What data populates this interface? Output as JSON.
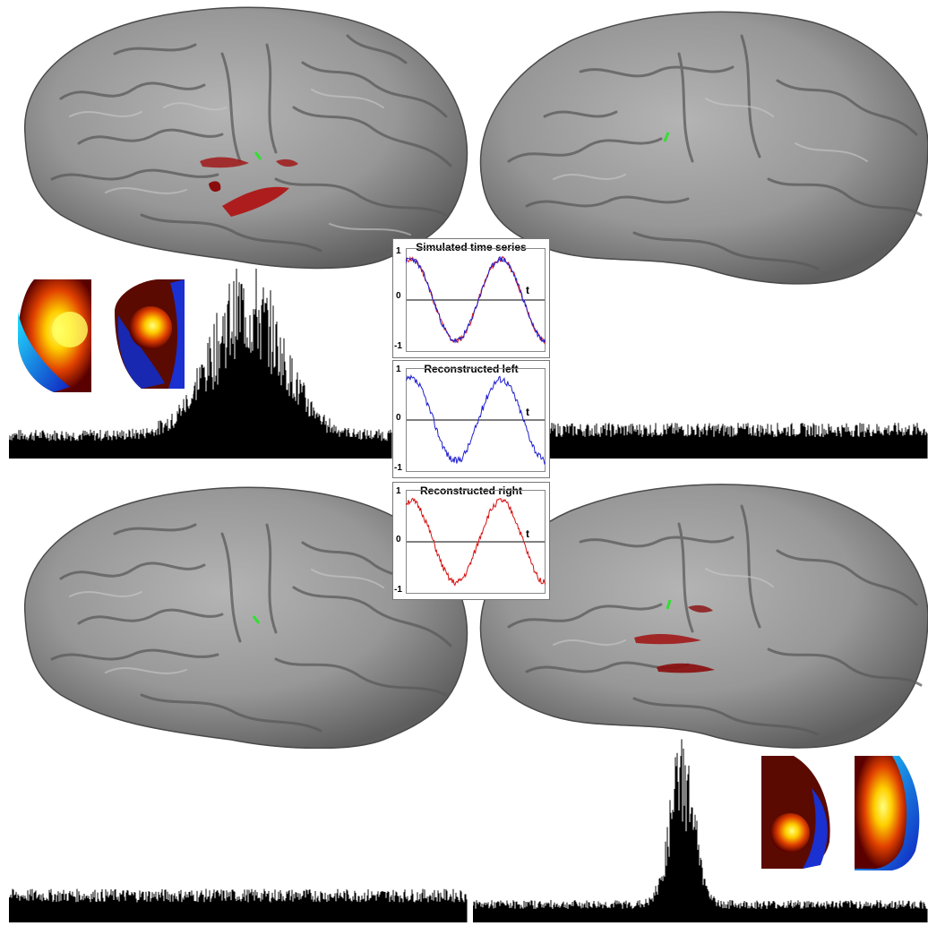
{
  "panels": [
    {
      "id": "simulated",
      "title": "Simulated time series",
      "y_max": "1",
      "y_zero": "0",
      "y_min": "-1",
      "x_label": "t",
      "colors": [
        "#d81010",
        "#2020d0"
      ]
    },
    {
      "id": "left",
      "title": "Reconstructed left",
      "y_max": "1",
      "y_zero": "0",
      "y_min": "-1",
      "x_label": "t",
      "colors": [
        "#2020d0"
      ]
    },
    {
      "id": "right",
      "title": "Reconstructed right",
      "y_max": "1",
      "y_zero": "0",
      "y_min": "-1",
      "x_label": "t",
      "colors": [
        "#d81010"
      ]
    }
  ],
  "colors": {
    "cortex": "#8e8e8e",
    "activation": "#b01010",
    "marker": "#30e030",
    "histogram": "#000000"
  },
  "brains": [
    "left-hemisphere-top",
    "right-hemisphere-top",
    "left-hemisphere-bottom",
    "right-hemisphere-bottom"
  ],
  "histograms": [
    "top-left-histogram",
    "top-right-histogram",
    "bottom-left-histogram",
    "bottom-right-histogram"
  ],
  "topomaps": [
    "topomap-top-1",
    "topomap-top-2",
    "topomap-bottom-1",
    "topomap-bottom-2"
  ]
}
